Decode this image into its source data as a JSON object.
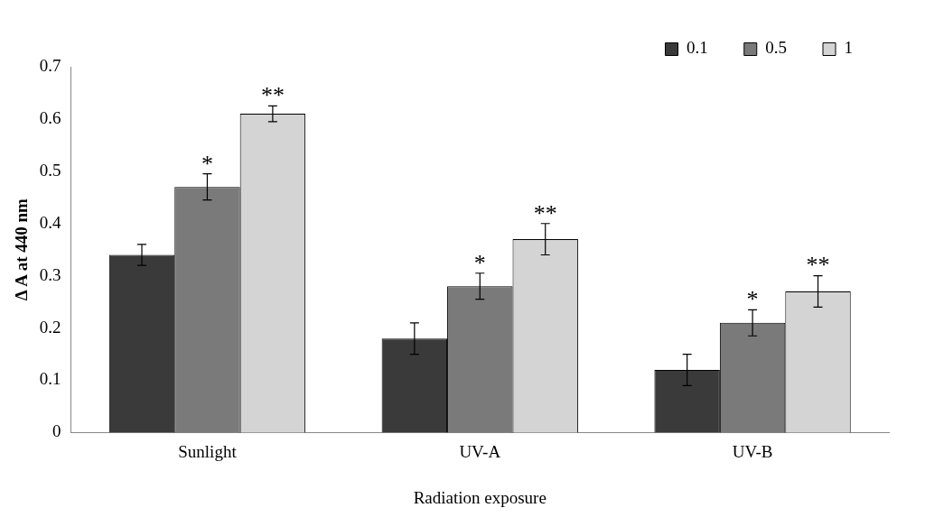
{
  "chart_data": {
    "type": "bar",
    "xlabel": "Radiation exposure",
    "ylabel": "Δ A at 440 nm",
    "categories": [
      "Sunlight",
      "UV-A",
      "UV-B"
    ],
    "series": [
      {
        "name": "0.1",
        "color": "#3a3a3a",
        "values": [
          0.34,
          0.18,
          0.12
        ],
        "errors": [
          0.02,
          0.03,
          0.03
        ]
      },
      {
        "name": "0.5",
        "color": "#7a7a7a",
        "values": [
          0.47,
          0.28,
          0.21
        ],
        "errors": [
          0.025,
          0.025,
          0.025
        ],
        "value_labels": [
          "*",
          "*",
          "*"
        ]
      },
      {
        "name": "1",
        "color": "#d4d4d4",
        "values": [
          0.61,
          0.37,
          0.27
        ],
        "errors": [
          0.015,
          0.03,
          0.03
        ],
        "value_labels": [
          "**",
          "**",
          "**"
        ]
      }
    ],
    "ylim": [
      0,
      0.7
    ],
    "yticks": [
      0,
      0.1,
      0.2,
      0.3,
      0.4,
      0.5,
      0.6,
      0.7
    ],
    "grid": false,
    "legend": "top right"
  }
}
